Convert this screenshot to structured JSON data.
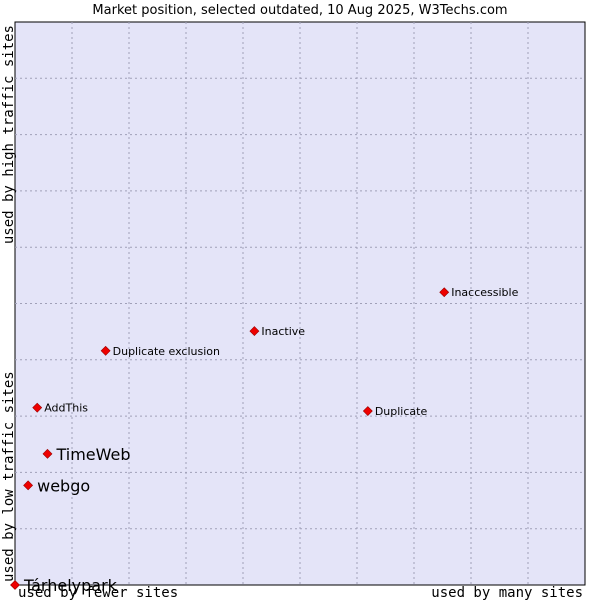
{
  "chart_data": {
    "type": "scatter",
    "title": "Market position, selected outdated, 10 Aug 2025, W3Techs.com",
    "xlabel_left": "used by fewer sites",
    "xlabel_right": "used by many sites",
    "ylabel_bottom": "used by low traffic sites",
    "ylabel_top": "used by high traffic sites",
    "xlim": [
      0,
      100
    ],
    "ylim": [
      0,
      100
    ],
    "grid": true,
    "points": [
      {
        "label": "Inaccessible",
        "x": 75.3,
        "y": 52.0,
        "size": "small"
      },
      {
        "label": "Inactive",
        "x": 42.0,
        "y": 45.1,
        "size": "small"
      },
      {
        "label": "Duplicate exclusion",
        "x": 15.9,
        "y": 41.6,
        "size": "small"
      },
      {
        "label": "AddThis",
        "x": 3.9,
        "y": 31.5,
        "size": "small"
      },
      {
        "label": "Duplicate",
        "x": 61.9,
        "y": 30.9,
        "size": "small"
      },
      {
        "label": "TimeWeb",
        "x": 5.7,
        "y": 23.3,
        "size": "large"
      },
      {
        "label": "webgo",
        "x": 2.3,
        "y": 17.7,
        "size": "large"
      },
      {
        "label": "Tárhelypark",
        "x": 0.0,
        "y": 0.0,
        "size": "large"
      }
    ]
  },
  "colors": {
    "plot_background": "#e4e4f8",
    "grid": "#a0a0b8",
    "point": "#ee0000",
    "point_outline": "#990000"
  }
}
